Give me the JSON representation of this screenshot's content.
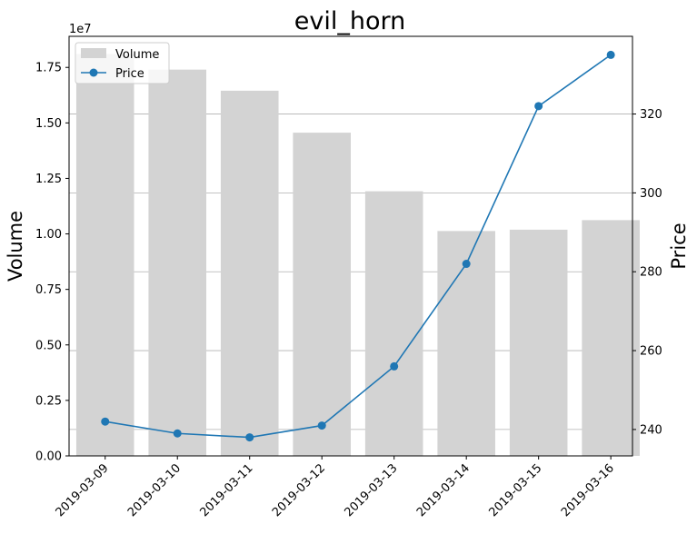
{
  "chart_data": {
    "type": "bar",
    "title": "evil_horn",
    "ylabel_left": "Volume",
    "ylabel_right": "Price",
    "offset_label": "1e7",
    "categories": [
      "2019-03-09",
      "2019-03-10",
      "2019-03-11",
      "2019-03-12",
      "2019-03-13",
      "2019-03-14",
      "2019-03-15",
      "2019-03-16"
    ],
    "series": [
      {
        "name": "Volume",
        "type": "bar",
        "axis": "left",
        "color": "#d3d3d3",
        "values": [
          18100000,
          17400000,
          16450000,
          14560000,
          11920000,
          10130000,
          10190000,
          10620000
        ]
      },
      {
        "name": "Price",
        "type": "line",
        "axis": "right",
        "color": "#1f77b4",
        "marker": "circle",
        "values": [
          242,
          239,
          238,
          241,
          256,
          282,
          322,
          335
        ]
      }
    ],
    "y_left": {
      "range": [
        0,
        18900000
      ],
      "ticks": [
        0,
        2500000,
        5000000,
        7500000,
        10000000,
        12500000,
        15000000,
        17500000
      ],
      "tick_labels": [
        "0.00",
        "0.25",
        "0.50",
        "0.75",
        "1.00",
        "1.25",
        "1.50",
        "1.75"
      ]
    },
    "y_right": {
      "range": [
        233.3,
        339.7
      ],
      "ticks": [
        240,
        260,
        280,
        300,
        320
      ],
      "tick_labels": [
        "240",
        "260",
        "280",
        "300",
        "320"
      ]
    },
    "grid": "horizontal lines at right-axis ticks",
    "legend": "upper-left"
  }
}
